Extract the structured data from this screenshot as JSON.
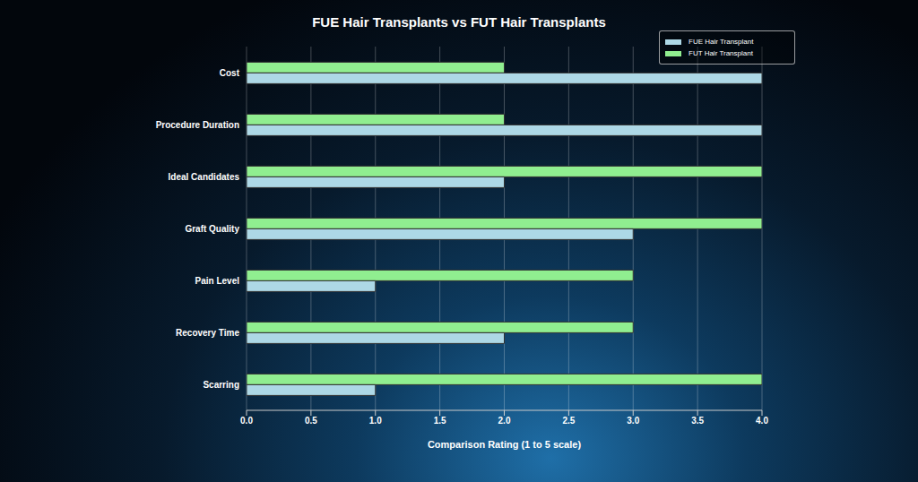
{
  "chart_data": {
    "type": "bar",
    "orientation": "horizontal",
    "title": "FUE Hair Transplants vs FUT Hair Transplants",
    "x_label": "Comparison Rating (1 to 5 scale)",
    "categories": [
      "Cost",
      "Procedure Duration",
      "Ideal Candidates",
      "Graft Quality",
      "Pain Level",
      "Recovery Time",
      "Scarring"
    ],
    "series": [
      {
        "name": "FUE Hair Transplant",
        "color": "#add8e6",
        "values": [
          4,
          4,
          2,
          3,
          1,
          2,
          1
        ]
      },
      {
        "name": "FUT Hair Transplant",
        "color": "#90ee90",
        "values": [
          2,
          2,
          4,
          4,
          3,
          3,
          4
        ]
      }
    ],
    "xlim": [
      0,
      4
    ],
    "xticks": [
      {
        "value": 0,
        "label": "0.0"
      },
      0.5,
      {
        "value": 1,
        "label": "1.0"
      },
      1.5,
      {
        "value": 2,
        "label": "2.0"
      },
      2.5,
      {
        "value": 3,
        "label": "3.0"
      },
      3.5,
      {
        "value": 4,
        "label": "4.0"
      }
    ],
    "grid": true,
    "legend": "upper right"
  }
}
